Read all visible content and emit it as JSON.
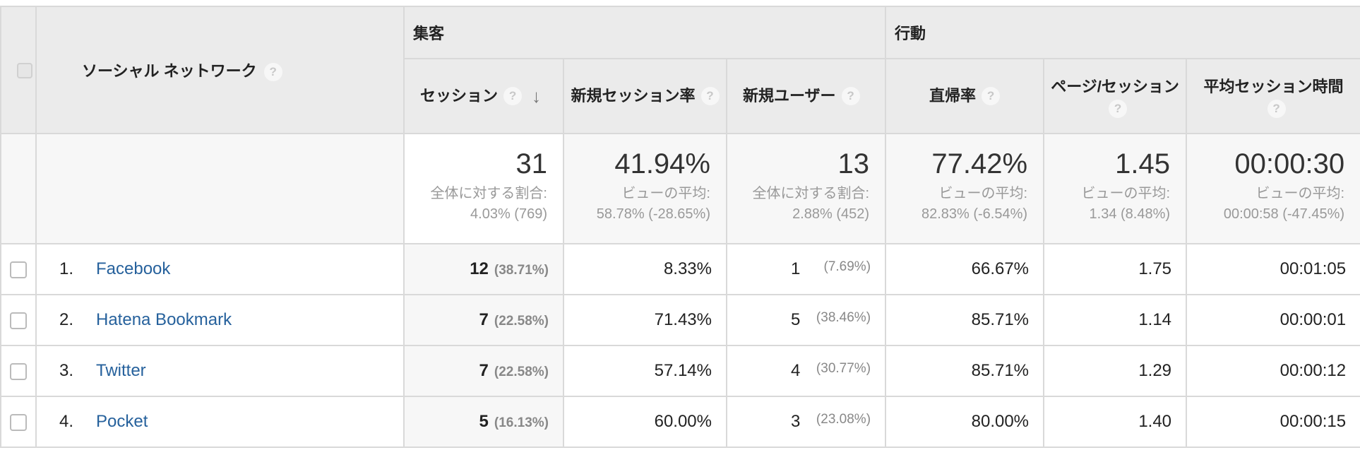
{
  "header": {
    "dimension": "ソーシャル ネットワーク",
    "groups": [
      "集客",
      "行動"
    ],
    "columns": [
      "セッション",
      "新規セッション率",
      "新規ユーザー",
      "直帰率",
      "ページ/セッション",
      "平均セッション時間"
    ],
    "help_glyph": "?",
    "sort_arrow": "↓"
  },
  "summary": {
    "sessions": {
      "value": "31",
      "line1": "全体に対する割合:",
      "line2": "4.03% (769)"
    },
    "new_session_rate": {
      "value": "41.94%",
      "line1": "ビューの平均:",
      "line2": "58.78% (-28.65%)"
    },
    "new_users": {
      "value": "13",
      "line1": "全体に対する割合:",
      "line2": "2.88% (452)"
    },
    "bounce_rate": {
      "value": "77.42%",
      "line1": "ビューの平均:",
      "line2": "82.83% (-6.54%)"
    },
    "pages_per_session": {
      "value": "1.45",
      "line1": "ビューの平均:",
      "line2": "1.34 (8.48%)"
    },
    "avg_session_duration": {
      "value": "00:00:30",
      "line1": "ビューの平均:",
      "line2": "00:00:58 (-47.45%)"
    }
  },
  "rows": [
    {
      "rank": "1.",
      "network": "Facebook",
      "sessions": "12",
      "sessions_pct": "(38.71%)",
      "new_session_rate": "8.33%",
      "new_users": "1",
      "new_users_pct": "(7.69%)",
      "bounce_rate": "66.67%",
      "pages_per_session": "1.75",
      "avg_session_duration": "00:01:05"
    },
    {
      "rank": "2.",
      "network": "Hatena Bookmark",
      "sessions": "7",
      "sessions_pct": "(22.58%)",
      "new_session_rate": "71.43%",
      "new_users": "5",
      "new_users_pct": "(38.46%)",
      "bounce_rate": "85.71%",
      "pages_per_session": "1.14",
      "avg_session_duration": "00:00:01"
    },
    {
      "rank": "3.",
      "network": "Twitter",
      "sessions": "7",
      "sessions_pct": "(22.58%)",
      "new_session_rate": "57.14%",
      "new_users": "4",
      "new_users_pct": "(30.77%)",
      "bounce_rate": "85.71%",
      "pages_per_session": "1.29",
      "avg_session_duration": "00:00:12"
    },
    {
      "rank": "4.",
      "network": "Pocket",
      "sessions": "5",
      "sessions_pct": "(16.13%)",
      "new_session_rate": "60.00%",
      "new_users": "3",
      "new_users_pct": "(23.08%)",
      "bounce_rate": "80.00%",
      "pages_per_session": "1.40",
      "avg_session_duration": "00:00:15"
    }
  ],
  "colors": {
    "link": "#26619c",
    "header_bg": "#ebebeb",
    "border": "#d9d9d9"
  }
}
